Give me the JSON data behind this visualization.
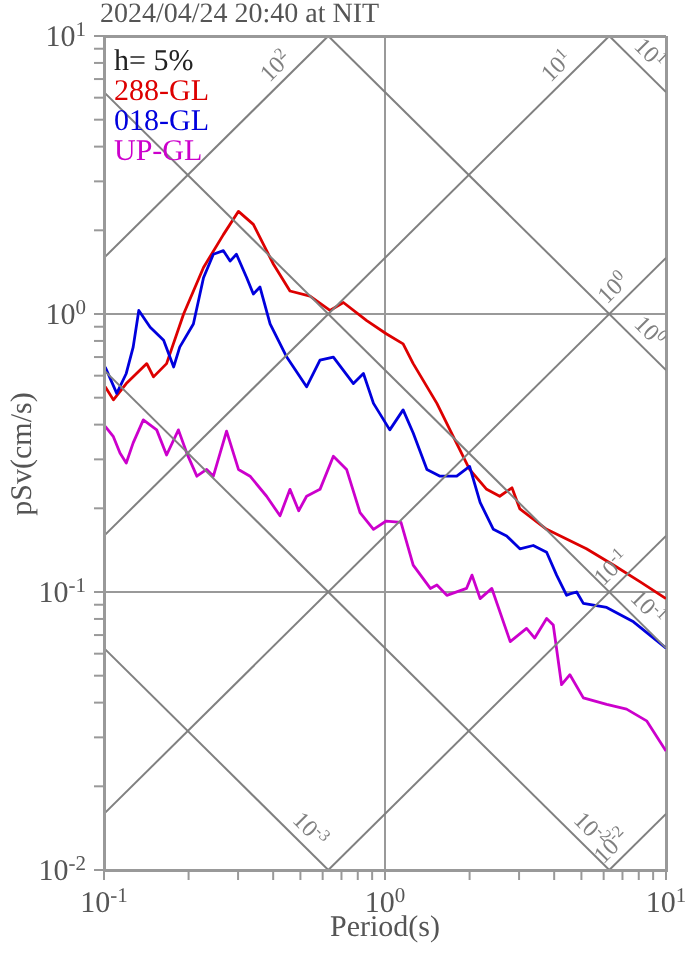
{
  "chart_data": {
    "type": "line",
    "title": "2024/04/24 20:40 at NIT",
    "xlabel": "Period(s)",
    "ylabel": "pSv(cm/s)",
    "annotations": [
      "h= 5%"
    ],
    "log": "xy",
    "grid": true,
    "legend": "top left",
    "xlim": [
      0.1,
      10
    ],
    "ylim": [
      0.01,
      10
    ],
    "xticks": [
      {
        "value": 0.1,
        "label": "10$^{-1}$"
      },
      {
        "value": 0.2,
        "label": null
      },
      {
        "value": 0.3,
        "label": null
      },
      {
        "value": 0.4,
        "label": null
      },
      {
        "value": 0.5,
        "label": null
      },
      {
        "value": 0.6,
        "label": null
      },
      {
        "value": 0.7,
        "label": null
      },
      {
        "value": 0.8,
        "label": null
      },
      {
        "value": 0.9,
        "label": null
      },
      {
        "value": 1,
        "label": "10$^{0}$"
      },
      {
        "value": 2,
        "label": null
      },
      {
        "value": 3,
        "label": null
      },
      {
        "value": 4,
        "label": null
      },
      {
        "value": 5,
        "label": null
      },
      {
        "value": 6,
        "label": null
      },
      {
        "value": 7,
        "label": null
      },
      {
        "value": 8,
        "label": null
      },
      {
        "value": 9,
        "label": null
      },
      {
        "value": 10,
        "label": "10$^{1}$"
      }
    ],
    "yticks": [
      {
        "value": 0.01,
        "label": "10$^{-2}$"
      },
      {
        "value": 0.02,
        "label": null
      },
      {
        "value": 0.03,
        "label": null
      },
      {
        "value": 0.04,
        "label": null
      },
      {
        "value": 0.05,
        "label": null
      },
      {
        "value": 0.06,
        "label": null
      },
      {
        "value": 0.07,
        "label": null
      },
      {
        "value": 0.08,
        "label": null
      },
      {
        "value": 0.09,
        "label": null
      },
      {
        "value": 0.1,
        "label": "10$^{-1}$"
      },
      {
        "value": 0.2,
        "label": null
      },
      {
        "value": 0.3,
        "label": null
      },
      {
        "value": 0.4,
        "label": null
      },
      {
        "value": 0.5,
        "label": null
      },
      {
        "value": 0.6,
        "label": null
      },
      {
        "value": 0.7,
        "label": null
      },
      {
        "value": 0.8,
        "label": null
      },
      {
        "value": 0.9,
        "label": null
      },
      {
        "value": 1,
        "label": "10$^{0}$"
      },
      {
        "value": 2,
        "label": null
      },
      {
        "value": 3,
        "label": null
      },
      {
        "value": 4,
        "label": null
      },
      {
        "value": 5,
        "label": null
      },
      {
        "value": 6,
        "label": null
      },
      {
        "value": 7,
        "label": null
      },
      {
        "value": 8,
        "label": null
      },
      {
        "value": 9,
        "label": null
      },
      {
        "value": 10,
        "label": "10$^{1}$"
      }
    ],
    "series": [
      {
        "name": "288-GL",
        "color": "#dd0000",
        "x": [
          0.101,
          0.108,
          0.12,
          0.142,
          0.15,
          0.167,
          0.192,
          0.226,
          0.266,
          0.301,
          0.34,
          0.401,
          0.459,
          0.541,
          0.637,
          0.711,
          0.861,
          1.01,
          1.16,
          1.26,
          1.53,
          1.75,
          2.0,
          2.3,
          2.56,
          2.83,
          3.02,
          3.76,
          5.21,
          6.5,
          8.07,
          10
        ],
        "values": [
          0.547,
          0.491,
          0.562,
          0.663,
          0.594,
          0.663,
          1.0,
          1.47,
          1.93,
          2.34,
          2.1,
          1.51,
          1.21,
          1.16,
          1.03,
          1.1,
          0.947,
          0.849,
          0.781,
          0.663,
          0.477,
          0.362,
          0.276,
          0.234,
          0.221,
          0.237,
          0.199,
          0.168,
          0.143,
          0.125,
          0.109,
          0.0947
        ]
      },
      {
        "name": "018-GL",
        "color": "#0000dd",
        "x": [
          0.101,
          0.111,
          0.12,
          0.127,
          0.133,
          0.146,
          0.163,
          0.177,
          0.186,
          0.208,
          0.226,
          0.245,
          0.266,
          0.281,
          0.296,
          0.322,
          0.34,
          0.359,
          0.39,
          0.447,
          0.526,
          0.587,
          0.655,
          0.772,
          0.838,
          0.91,
          1.04,
          1.16,
          1.26,
          1.41,
          1.57,
          1.8,
          2.0,
          2.18,
          2.43,
          2.71,
          3.02,
          3.37,
          3.76,
          4.08,
          4.43,
          4.55,
          4.81,
          5.08,
          6.15,
          7.66,
          10
        ],
        "values": [
          0.645,
          0.518,
          0.611,
          0.76,
          1.03,
          0.896,
          0.804,
          0.645,
          0.76,
          0.921,
          1.35,
          1.64,
          1.69,
          1.55,
          1.64,
          1.35,
          1.18,
          1.25,
          0.921,
          0.7,
          0.547,
          0.682,
          0.7,
          0.562,
          0.611,
          0.477,
          0.383,
          0.452,
          0.373,
          0.276,
          0.261,
          0.261,
          0.283,
          0.21,
          0.168,
          0.159,
          0.143,
          0.147,
          0.139,
          0.115,
          0.0973,
          0.0984,
          0.1,
          0.091,
          0.088,
          0.0781,
          0.0628
        ]
      },
      {
        "name": "UP-GL",
        "color": "#cc00cc",
        "x": [
          0.101,
          0.108,
          0.114,
          0.12,
          0.127,
          0.138,
          0.154,
          0.167,
          0.184,
          0.197,
          0.214,
          0.232,
          0.245,
          0.273,
          0.301,
          0.331,
          0.379,
          0.423,
          0.459,
          0.493,
          0.526,
          0.587,
          0.655,
          0.73,
          0.815,
          0.91,
          1.01,
          1.14,
          1.26,
          1.45,
          1.53,
          1.66,
          1.95,
          2.04,
          2.18,
          2.4,
          2.79,
          3.19,
          3.41,
          3.76,
          3.97,
          4.25,
          4.55,
          5.08,
          6.15,
          7.24,
          8.53,
          10
        ],
        "values": [
          0.394,
          0.362,
          0.316,
          0.291,
          0.344,
          0.416,
          0.383,
          0.311,
          0.383,
          0.316,
          0.261,
          0.276,
          0.261,
          0.379,
          0.276,
          0.261,
          0.221,
          0.188,
          0.234,
          0.196,
          0.221,
          0.234,
          0.308,
          0.276,
          0.193,
          0.168,
          0.18,
          0.178,
          0.125,
          0.103,
          0.106,
          0.0973,
          0.103,
          0.115,
          0.0947,
          0.103,
          0.0663,
          0.074,
          0.0683,
          0.0803,
          0.0761,
          0.0464,
          0.0504,
          0.0416,
          0.0394,
          0.0379,
          0.0344,
          0.0268
        ]
      },
      {
        "name": "10$^{2}$",
        "color": "#808080",
        "line_style": "solid",
        "x": [
          0.1,
          0.6283
        ],
        "values": [
          1.592,
          10
        ]
      },
      {
        "name": "10$^{1}$",
        "color": "#808080",
        "line_style": "solid",
        "x": [
          0.1,
          6.283
        ],
        "values": [
          0.1592,
          10
        ]
      },
      {
        "name": "10$^{0}$",
        "color": "#808080",
        "line_style": "solid",
        "x": [
          0.1,
          10
        ],
        "values": [
          0.01592,
          1.592
        ]
      },
      {
        "name": "10$^{-1}$",
        "color": "#808080",
        "line_style": "solid",
        "x": [
          0.6283,
          10
        ],
        "values": [
          0.01,
          0.1592
        ]
      },
      {
        "name": "10$^{-2}$",
        "color": "#808080",
        "line_style": "solid",
        "x": [
          6.283,
          10
        ],
        "values": [
          0.01,
          0.01592
        ]
      },
      {
        "name": "10$^{1}$",
        "color": "#808080",
        "line_style": "solid",
        "x": [
          6.283,
          10
        ],
        "values": [
          10,
          6.283
        ]
      },
      {
        "name": "10$^{0}$",
        "color": "#808080",
        "line_style": "solid",
        "x": [
          0.6283,
          10
        ],
        "values": [
          10,
          0.6283
        ]
      },
      {
        "name": "10$^{-1}$",
        "color": "#808080",
        "line_style": "solid",
        "x": [
          0.1,
          10
        ],
        "values": [
          6.283,
          0.06283
        ]
      },
      {
        "name": "10$^{-2}$",
        "color": "#808080",
        "line_style": "solid",
        "x": [
          0.1,
          6.283
        ],
        "values": [
          0.6283,
          0.01
        ]
      },
      {
        "name": "10$^{-3}$",
        "color": "#808080",
        "line_style": "solid",
        "x": [
          0.1,
          0.6283
        ],
        "values": [
          0.06283,
          0.01
        ]
      }
    ]
  }
}
